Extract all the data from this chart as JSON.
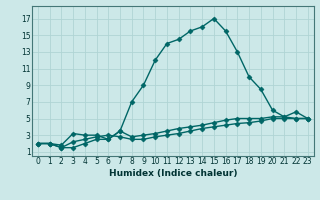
{
  "title": "",
  "xlabel": "Humidex (Indice chaleur)",
  "ylabel": "",
  "bg_color": "#cce8e8",
  "grid_color": "#b0d4d4",
  "line_color": "#006666",
  "xlim": [
    -0.5,
    23.5
  ],
  "ylim": [
    0.5,
    18.5
  ],
  "xticks": [
    0,
    1,
    2,
    3,
    4,
    5,
    6,
    7,
    8,
    9,
    10,
    11,
    12,
    13,
    14,
    15,
    16,
    17,
    18,
    19,
    20,
    21,
    22,
    23
  ],
  "yticks": [
    1,
    3,
    5,
    7,
    9,
    11,
    13,
    15,
    17
  ],
  "line1_x": [
    0,
    1,
    2,
    3,
    4,
    5,
    6,
    7,
    8,
    9,
    10,
    11,
    12,
    13,
    14,
    15,
    16,
    17,
    18,
    19,
    20,
    21,
    22,
    23
  ],
  "line1_y": [
    2.0,
    2.0,
    1.5,
    2.2,
    2.5,
    2.8,
    3.0,
    2.8,
    2.5,
    2.5,
    2.8,
    3.0,
    3.2,
    3.5,
    3.8,
    4.0,
    4.2,
    4.4,
    4.5,
    4.7,
    5.0,
    5.0,
    5.0,
    5.0
  ],
  "line2_x": [
    0,
    1,
    2,
    3,
    4,
    5,
    6,
    7,
    8,
    9,
    10,
    11,
    12,
    13,
    14,
    15,
    16,
    17,
    18,
    19,
    20,
    21,
    22,
    23
  ],
  "line2_y": [
    2.0,
    2.0,
    1.8,
    3.2,
    3.0,
    3.0,
    2.5,
    3.5,
    2.8,
    3.0,
    3.2,
    3.5,
    3.8,
    4.0,
    4.2,
    4.5,
    4.8,
    5.0,
    5.0,
    5.0,
    5.2,
    5.2,
    5.0,
    5.0
  ],
  "line3_x": [
    0,
    1,
    2,
    3,
    4,
    5,
    6,
    7,
    8,
    9,
    10,
    11,
    12,
    13,
    14,
    15,
    16,
    17,
    18,
    19,
    20,
    21,
    22,
    23
  ],
  "line3_y": [
    2.0,
    2.0,
    1.5,
    1.5,
    2.0,
    2.5,
    2.5,
    3.5,
    7.0,
    9.0,
    12.0,
    14.0,
    14.5,
    15.5,
    16.0,
    17.0,
    15.5,
    13.0,
    10.0,
    8.5,
    6.0,
    5.2,
    5.8,
    5.0
  ],
  "marker": "D",
  "markersize": 2.5,
  "linewidth": 1.0,
  "tick_fontsize": 5.5,
  "xlabel_fontsize": 6.5
}
